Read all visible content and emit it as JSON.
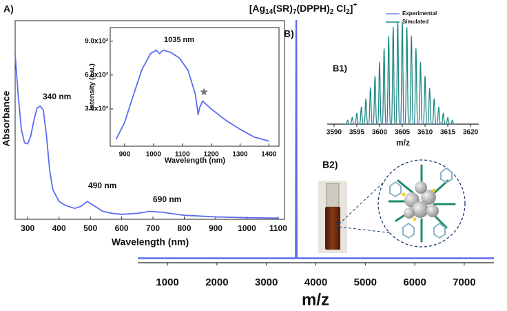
{
  "chart_data": [
    {
      "type": "line",
      "panel_label": "A)",
      "x_label": "Wavelength (nm)",
      "y_label": "Absorbance",
      "annotations": [
        "340 nm",
        "490 nm",
        "690 nm"
      ],
      "xlim": [
        260,
        1120
      ],
      "ylim": [
        0,
        1
      ],
      "xticks": [
        300,
        400,
        500,
        600,
        700,
        800,
        900,
        1000,
        1100
      ],
      "series": [
        {
          "color": "#5b6cf0",
          "x": [
            260,
            270,
            280,
            290,
            300,
            310,
            320,
            330,
            340,
            350,
            360,
            370,
            380,
            400,
            420,
            450,
            470,
            490,
            510,
            540,
            570,
            600,
            650,
            690,
            730,
            800,
            900,
            1000,
            1100
          ],
          "values": [
            0.83,
            0.62,
            0.45,
            0.385,
            0.38,
            0.42,
            0.5,
            0.56,
            0.57,
            0.55,
            0.42,
            0.25,
            0.15,
            0.09,
            0.07,
            0.055,
            0.065,
            0.09,
            0.07,
            0.04,
            0.03,
            0.025,
            0.03,
            0.04,
            0.035,
            0.02,
            0.012,
            0.008,
            0.006
          ]
        }
      ]
    },
    {
      "type": "line",
      "x_label": "Wavelength (nm)",
      "y_label": "Intensity (a.u.)",
      "annotations": [
        "1035 nm"
      ],
      "xlim": [
        850,
        1435
      ],
      "ylim": [
        -300,
        10200
      ],
      "xticks": [
        900,
        1000,
        1100,
        1200,
        1300,
        1400
      ],
      "yticks": [
        {
          "value": 3000,
          "label": "3.0x10³"
        },
        {
          "value": 6000,
          "label": "6.0x10³"
        },
        {
          "value": 9000,
          "label": "9.0x10³"
        }
      ],
      "series": [
        {
          "color": "#5b6cf0",
          "x": [
            870,
            900,
            930,
            960,
            990,
            1010,
            1020,
            1035,
            1060,
            1090,
            1120,
            1145,
            1155,
            1160,
            1170,
            1200,
            1250,
            1300,
            1350,
            1400
          ],
          "values": [
            300,
            1800,
            4200,
            6500,
            7900,
            8200,
            7900,
            8200,
            8000,
            7500,
            6400,
            4300,
            2500,
            3100,
            3700,
            3000,
            2000,
            1200,
            500,
            150
          ]
        }
      ]
    },
    {
      "type": "line",
      "panel_label": "B)",
      "x_label": "m/z",
      "title_parts": [
        "[Ag",
        "14",
        "(SR)",
        "7",
        "(DPPH)",
        "2",
        " Cl",
        "2",
        "]",
        "+"
      ],
      "xlim": [
        400,
        7600
      ],
      "ylim": [
        0,
        100
      ],
      "xticks": [
        1000,
        2000,
        3000,
        4000,
        5000,
        6000,
        7000
      ],
      "series": [
        {
          "color": "#5b6cf0",
          "x": [
            400,
            3595,
            3604,
            3613,
            7600
          ],
          "values": [
            1,
            1,
            100,
            1,
            1
          ]
        }
      ]
    },
    {
      "type": "peaks",
      "panel_label": "B1)",
      "x_label": "m/z",
      "legend": "top-right",
      "xlim": [
        3588.5,
        3621.8
      ],
      "ylim": [
        0,
        102
      ],
      "xticks": [
        3590,
        3595,
        3600,
        3605,
        3610,
        3615,
        3620
      ],
      "series": [
        {
          "name": "Experimental",
          "color": "#6c8cf0",
          "x": [
            3593,
            3594,
            3595,
            3596,
            3597,
            3598,
            3599,
            3600,
            3601,
            3602,
            3603,
            3604,
            3605,
            3606,
            3607,
            3608,
            3609,
            3610,
            3611,
            3612,
            3613,
            3614,
            3615,
            3616
          ],
          "values": [
            4,
            7,
            11,
            17,
            25,
            36,
            47,
            61,
            74,
            86,
            95,
            100,
            98,
            93,
            86,
            72,
            60,
            47,
            35,
            25,
            17,
            11,
            7,
            4
          ]
        },
        {
          "name": "Simulated",
          "color": "#1a8a7a",
          "x": [
            3593,
            3594,
            3595,
            3596,
            3597,
            3598,
            3599,
            3600,
            3601,
            3602,
            3603,
            3604,
            3605,
            3606,
            3607,
            3608,
            3609,
            3610,
            3611,
            3612,
            3613,
            3614,
            3615,
            3616
          ],
          "values": [
            3.7,
            6.4,
            10.5,
            16.4,
            24.5,
            34.8,
            46.9,
            60.3,
            73.6,
            85.5,
            94.5,
            99.4,
            99.4,
            94.5,
            85.5,
            73.6,
            60.3,
            46.9,
            34.8,
            24.5,
            16.4,
            10.5,
            6.4,
            3.7
          ]
        }
      ]
    }
  ],
  "panel_b2": {
    "label": "B2)"
  }
}
